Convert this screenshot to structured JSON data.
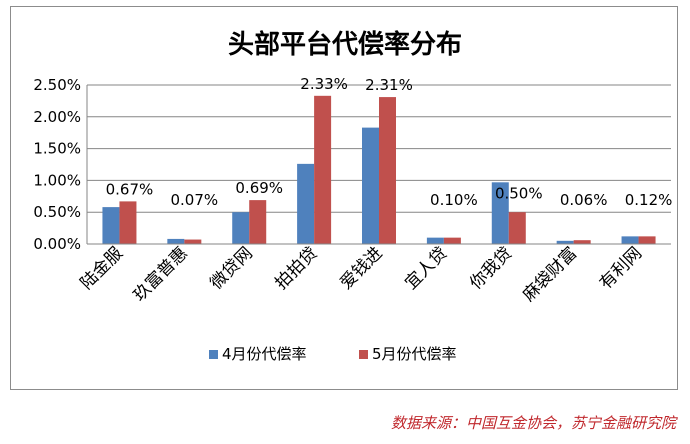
{
  "chart_data": {
    "type": "bar",
    "title": "头部平台代偿率分布",
    "categories": [
      "陆金服",
      "玖富普惠",
      "微贷网",
      "拍拍贷",
      "爱钱进",
      "宜人贷",
      "你我贷",
      "麻袋财富",
      "有利网"
    ],
    "series": [
      {
        "name": "4月份代偿率",
        "values": [
          0.58,
          0.08,
          0.5,
          1.26,
          1.83,
          0.1,
          0.97,
          0.05,
          0.12
        ]
      },
      {
        "name": "5月份代偿率",
        "values": [
          0.67,
          0.07,
          0.69,
          2.33,
          2.31,
          0.1,
          0.5,
          0.06,
          0.12
        ]
      }
    ],
    "data_labels": [
      "0.67%",
      "0.07%",
      "0.69%",
      "2.33%",
      "2.31%",
      "0.10%",
      "0.50%",
      "0.06%",
      "0.12%"
    ],
    "y_ticks": [
      "0.00%",
      "0.50%",
      "1.00%",
      "1.50%",
      "2.00%",
      "2.50%"
    ],
    "ylim": [
      0,
      2.5
    ],
    "grid": true,
    "legend_position": "bottom",
    "colors": {
      "april": "#4f81bd",
      "may": "#c0504d",
      "grid": "#868686",
      "axis": "#868686"
    }
  },
  "source_note": "数据来源：中国互金协会，苏宁金融研究院"
}
